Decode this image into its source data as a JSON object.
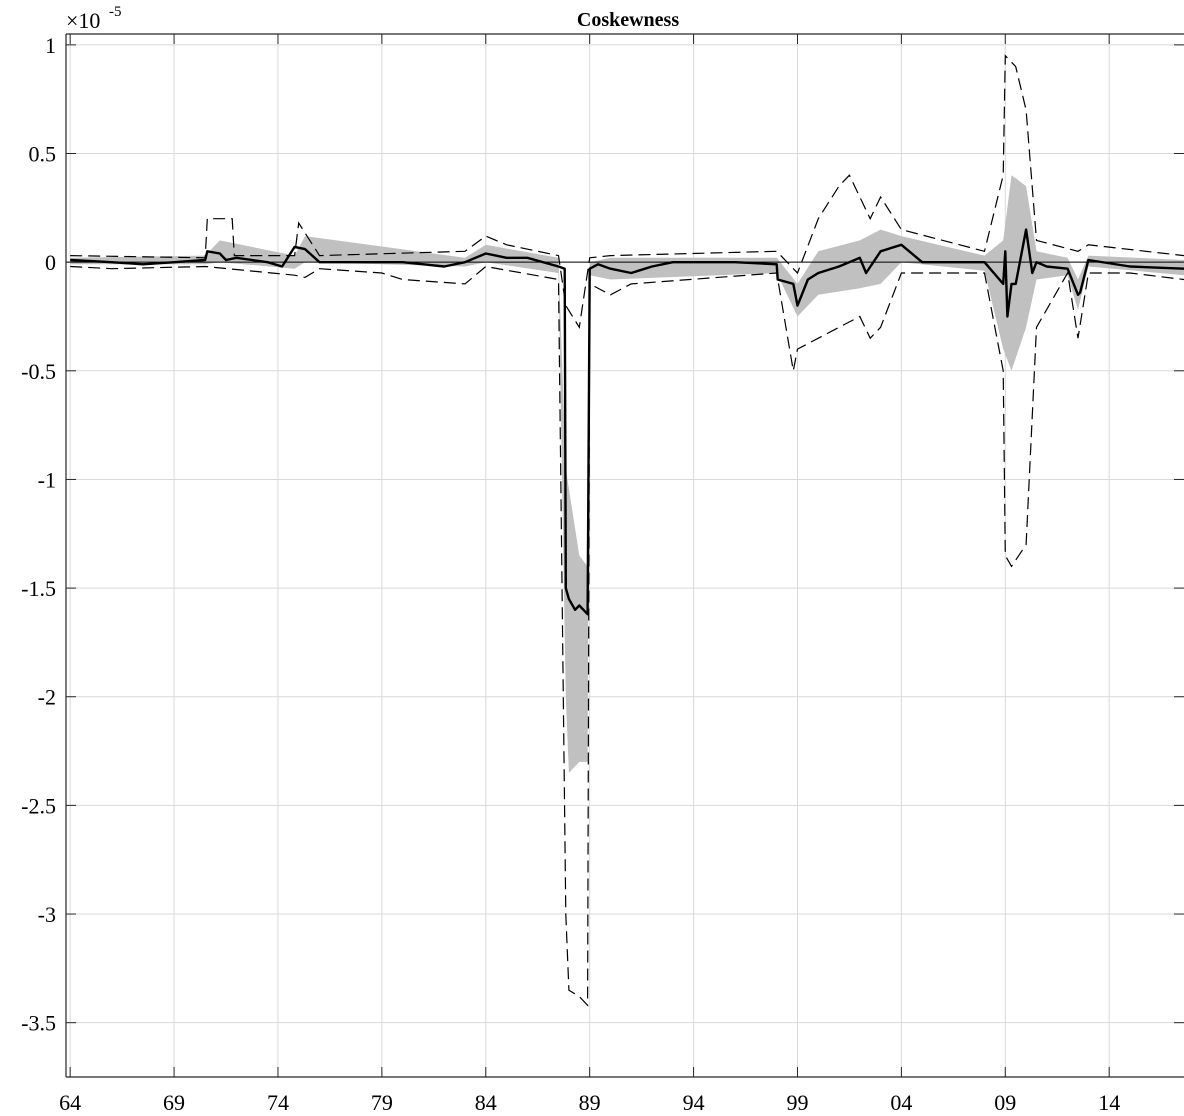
{
  "chart_data": {
    "type": "line",
    "title": "Coskewness",
    "xlabel": "",
    "ylabel": "",
    "y_exponent_base": "×10",
    "y_exponent_power": "-5",
    "xlim": [
      1963.8,
      2017.6
    ],
    "ylim": [
      -3.75,
      1.05
    ],
    "grid": true,
    "x_ticks": [
      1964,
      1969,
      1974,
      1979,
      1984,
      1989,
      1994,
      1999,
      2004,
      2009,
      2014
    ],
    "x_tick_labels": [
      "64",
      "69",
      "74",
      "79",
      "84",
      "89",
      "94",
      "99",
      "04",
      "09",
      "14"
    ],
    "y_ticks": [
      1,
      0.5,
      0,
      -0.5,
      -1,
      -1.5,
      -2,
      -2.5,
      -3,
      -3.5
    ],
    "y_tick_labels": [
      "1",
      "0.5",
      "0",
      "-0.5",
      "-1",
      "-1.5",
      "-2",
      "-2.5",
      "-3",
      "-3.5"
    ],
    "zero_line": true,
    "colors": {
      "estimate": "#000000",
      "band": "#c0c0c0",
      "bounds": "#000000",
      "grid": "#d9d9d9"
    },
    "series": [
      {
        "role": "estimate",
        "x": [
          1964.0,
          1966.0,
          1967.5,
          1969.0,
          1970.5,
          1970.6,
          1971.2,
          1971.5,
          1972.0,
          1973.5,
          1974.2,
          1974.8,
          1975.3,
          1976.0,
          1977.0,
          1979.0,
          1980.0,
          1981.0,
          1982.0,
          1983.0,
          1984.0,
          1985.0,
          1986.0,
          1987.5,
          1987.8,
          1987.85,
          1988.0,
          1988.3,
          1988.5,
          1988.9,
          1989.0,
          1989.4,
          1990.0,
          1991.0,
          1992.0,
          1993.0,
          1996.0,
          1998.0,
          1998.05,
          1998.8,
          1999.0,
          1999.5,
          2000.0,
          2001.0,
          2002.0,
          2002.3,
          2003.0,
          2004.0,
          2005.0,
          2008.0,
          2008.9,
          2009.0,
          2009.1,
          2009.3,
          2009.5,
          2010.0,
          2010.3,
          2010.5,
          2011.0,
          2012.0,
          2012.5,
          2012.6,
          2013.0,
          2015.0,
          2017.6
        ],
        "values": [
          0.01,
          0.0,
          -0.01,
          0.0,
          0.01,
          0.05,
          0.04,
          0.01,
          0.02,
          0.0,
          -0.02,
          0.07,
          0.06,
          0.0,
          0.0,
          0.0,
          0.0,
          -0.01,
          -0.02,
          0.0,
          0.04,
          0.02,
          0.02,
          -0.02,
          -0.03,
          -1.5,
          -1.55,
          -1.6,
          -1.58,
          -1.62,
          -0.03,
          -0.01,
          -0.03,
          -0.05,
          -0.02,
          0.0,
          0.0,
          -0.01,
          -0.08,
          -0.1,
          -0.2,
          -0.08,
          -0.05,
          -0.02,
          0.02,
          -0.05,
          0.05,
          0.08,
          0.0,
          0.0,
          -0.1,
          0.05,
          -0.25,
          -0.1,
          -0.1,
          0.15,
          -0.05,
          0.0,
          -0.02,
          -0.03,
          -0.15,
          -0.14,
          0.01,
          -0.02,
          -0.03
        ]
      },
      {
        "role": "band-upper",
        "x": [
          1964.0,
          1970.5,
          1971.2,
          1974.8,
          1975.3,
          1983.0,
          1984.0,
          1987.5,
          1987.85,
          1988.5,
          1988.9,
          1989.0,
          1990.0,
          1998.0,
          1999.0,
          2000.0,
          2002.0,
          2003.0,
          2004.0,
          2008.0,
          2008.9,
          2009.3,
          2010.0,
          2010.5,
          2012.0,
          2012.5,
          2013.0,
          2017.6
        ],
        "values": [
          0.02,
          0.03,
          0.1,
          0.03,
          0.12,
          0.02,
          0.08,
          0.02,
          -0.95,
          -1.35,
          -1.4,
          0.0,
          0.02,
          0.02,
          -0.1,
          0.05,
          0.1,
          0.15,
          0.12,
          0.03,
          0.1,
          0.4,
          0.35,
          0.05,
          0.02,
          -0.08,
          0.03,
          0.01
        ]
      },
      {
        "role": "band-lower",
        "x": [
          1964.0,
          1970.5,
          1971.2,
          1974.8,
          1975.3,
          1983.0,
          1984.0,
          1987.5,
          1987.85,
          1988.0,
          1988.5,
          1988.9,
          1989.0,
          1990.0,
          1998.0,
          1999.0,
          2000.0,
          2002.0,
          2003.0,
          2004.0,
          2008.0,
          2008.9,
          2009.3,
          2010.0,
          2010.5,
          2012.0,
          2012.5,
          2013.0,
          2017.6
        ],
        "values": [
          -0.01,
          -0.01,
          0.0,
          -0.03,
          0.0,
          -0.02,
          0.0,
          -0.05,
          -2.0,
          -2.35,
          -2.3,
          -2.3,
          -0.06,
          -0.08,
          -0.05,
          -0.25,
          -0.15,
          -0.12,
          -0.1,
          0.0,
          -0.04,
          -0.4,
          -0.5,
          -0.3,
          -0.08,
          -0.06,
          -0.22,
          -0.02,
          -0.06
        ]
      },
      {
        "role": "bound-upper",
        "x": [
          1964.0,
          1970.5,
          1970.6,
          1971.8,
          1971.9,
          1974.8,
          1975.0,
          1976.0,
          1983.0,
          1984.0,
          1985.0,
          1987.5,
          1987.85,
          1988.5,
          1989.0,
          1990.0,
          1998.0,
          1999.0,
          2000.0,
          2001.0,
          2001.5,
          2002.5,
          2003.0,
          2004.0,
          2008.0,
          2008.9,
          2009.0,
          2009.5,
          2010.0,
          2010.5,
          2012.5,
          2013.0,
          2017.6
        ],
        "values": [
          0.03,
          0.02,
          0.2,
          0.2,
          0.03,
          0.03,
          0.18,
          0.03,
          0.05,
          0.12,
          0.08,
          0.03,
          -0.2,
          -0.3,
          0.02,
          0.03,
          0.05,
          -0.05,
          0.2,
          0.35,
          0.4,
          0.2,
          0.3,
          0.15,
          0.05,
          0.4,
          0.95,
          0.9,
          0.7,
          0.1,
          0.05,
          0.08,
          0.03
        ]
      },
      {
        "role": "bound-lower",
        "x": [
          1964.0,
          1966.0,
          1970.5,
          1974.8,
          1975.3,
          1976.0,
          1979.0,
          1980.0,
          1983.0,
          1984.0,
          1987.5,
          1987.85,
          1988.0,
          1988.5,
          1988.9,
          1989.0,
          1990.0,
          1991.0,
          1998.0,
          1998.8,
          1999.0,
          2000.0,
          2001.0,
          2002.0,
          2002.5,
          2003.0,
          2004.0,
          2008.0,
          2008.9,
          2009.0,
          2009.3,
          2010.0,
          2010.5,
          2012.0,
          2012.5,
          2013.0,
          2015.0,
          2017.6
        ],
        "values": [
          -0.02,
          -0.03,
          -0.02,
          -0.06,
          -0.07,
          -0.03,
          -0.05,
          -0.08,
          -0.1,
          -0.02,
          -0.08,
          -3.0,
          -3.35,
          -3.38,
          -3.42,
          -0.1,
          -0.15,
          -0.1,
          -0.05,
          -0.5,
          -0.4,
          -0.35,
          -0.3,
          -0.25,
          -0.35,
          -0.3,
          -0.05,
          -0.05,
          -0.5,
          -1.35,
          -1.4,
          -1.3,
          -0.3,
          -0.05,
          -0.35,
          -0.05,
          -0.05,
          -0.08
        ]
      }
    ]
  }
}
